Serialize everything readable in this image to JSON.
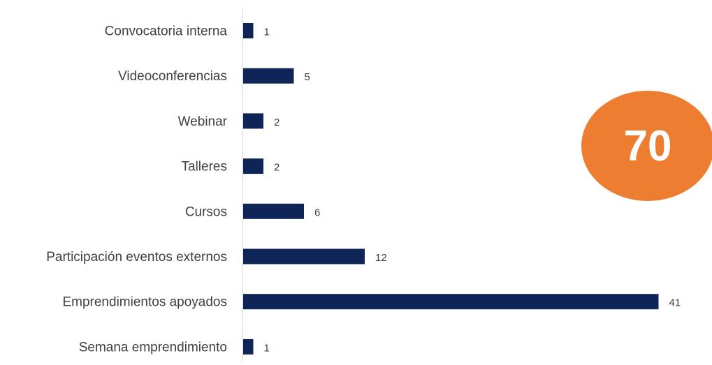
{
  "chart_data": {
    "type": "bar",
    "orientation": "horizontal",
    "categories": [
      "Convocatoria interna",
      "Videoconferencias",
      "Webinar",
      "Talleres",
      "Cursos",
      "Participación eventos externos",
      "Emprendimientos apoyados",
      "Semana emprendimiento"
    ],
    "values": [
      1,
      5,
      2,
      2,
      6,
      12,
      41,
      1
    ],
    "xlim": [
      0,
      41
    ],
    "grid": false,
    "legend": "none",
    "data_labels": true
  },
  "total_badge": {
    "value": "70"
  },
  "colors": {
    "bar": "#0f2557",
    "axis": "#d9d9d9",
    "text": "#404040",
    "badge": "#ed7d31"
  }
}
